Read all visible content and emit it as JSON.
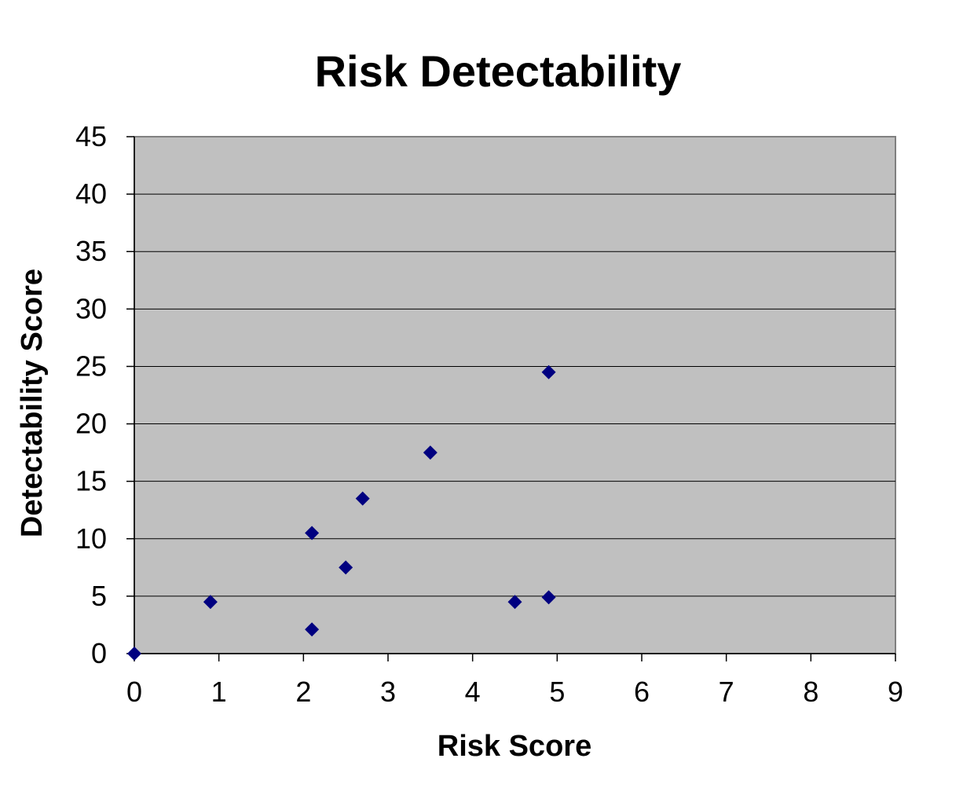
{
  "chart_data": {
    "type": "scatter",
    "title": "Risk Detectability",
    "xlabel": "Risk Score",
    "ylabel": "Detectability Score",
    "xlim": [
      0,
      9
    ],
    "ylim": [
      0,
      45
    ],
    "xticks": [
      0,
      1,
      2,
      3,
      4,
      5,
      6,
      7,
      8,
      9
    ],
    "yticks": [
      0,
      5,
      10,
      15,
      20,
      25,
      30,
      35,
      40,
      45
    ],
    "grid": {
      "horizontal": true,
      "vertical": false
    },
    "legend": "none",
    "marker": "diamond",
    "colors": {
      "plot_background": "#c0c0c0",
      "marker": "#000080",
      "gridline": "#000000",
      "border": "#808080"
    },
    "series": [
      {
        "points": [
          {
            "x": 0,
            "y": 0
          },
          {
            "x": 0.9,
            "y": 4.5
          },
          {
            "x": 2.1,
            "y": 2.1
          },
          {
            "x": 2.1,
            "y": 10.5
          },
          {
            "x": 2.5,
            "y": 7.5
          },
          {
            "x": 2.7,
            "y": 13.5
          },
          {
            "x": 3.5,
            "y": 17.5
          },
          {
            "x": 4.5,
            "y": 4.5
          },
          {
            "x": 4.9,
            "y": 4.9
          },
          {
            "x": 4.9,
            "y": 24.5
          }
        ]
      }
    ]
  }
}
